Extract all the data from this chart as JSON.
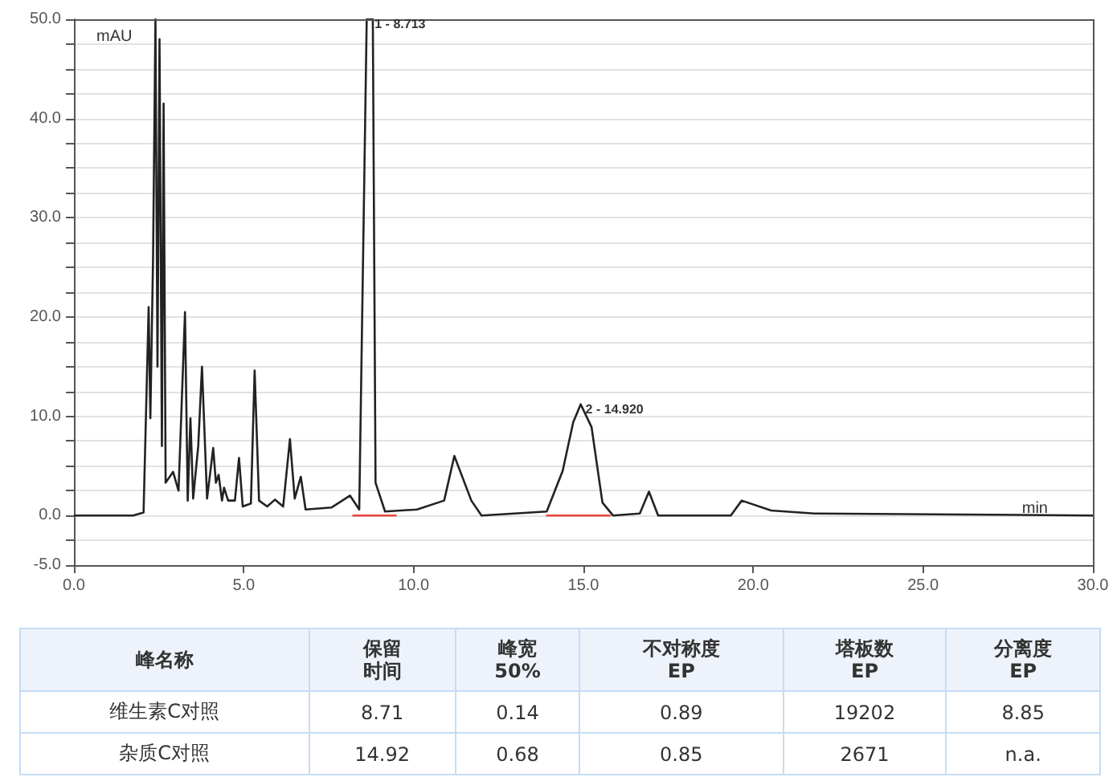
{
  "chart_data": [
    {
      "type": "line",
      "xlabel": "min",
      "ylabel": "mAU",
      "series": [
        {
          "color": "#222222",
          "x": [
            0,
            1.74,
            2.05,
            2.2,
            2.25,
            2.33,
            2.4,
            2.46,
            2.52,
            2.59,
            2.64,
            2.7,
            2.92,
            3.08,
            3.27,
            3.35,
            3.43,
            3.51,
            3.66,
            3.77,
            3.92,
            4.1,
            4.18,
            4.26,
            4.36,
            4.42,
            4.54,
            4.74,
            4.86,
            4.97,
            5.21,
            5.32,
            5.45,
            5.69,
            5.92,
            6.16,
            6.36,
            6.5,
            6.68,
            6.82,
            7.58,
            8.13,
            8.4,
            8.62,
            8.8,
            8.88,
            9.16,
            10.1,
            10.9,
            11.2,
            11.7,
            12.0,
            13.92,
            14.39,
            14.7,
            14.92,
            15.24,
            15.56,
            15.87,
            16.66,
            16.93,
            17.2,
            19.34,
            19.66,
            20.53,
            21.8,
            30
          ],
          "values": [
            0,
            0,
            0.3,
            21,
            9.8,
            26,
            50,
            15,
            48,
            7,
            41.5,
            3.3,
            4.4,
            2.5,
            20.5,
            1.5,
            9.8,
            1.7,
            7,
            15,
            1.7,
            6.8,
            3.3,
            4.1,
            1.5,
            2.8,
            1.5,
            1.5,
            5.8,
            0.9,
            1.2,
            14.6,
            1.5,
            0.9,
            1.6,
            0.9,
            7.7,
            1.7,
            3.9,
            0.6,
            0.8,
            2,
            0.6,
            50,
            50,
            3.3,
            0.4,
            0.6,
            1.5,
            6,
            1.5,
            0,
            0.4,
            4.5,
            9.4,
            11.2,
            8.9,
            1.3,
            0,
            0.2,
            2.4,
            0,
            0,
            1.5,
            0.5,
            0.2,
            0
          ]
        },
        {
          "color": "#e8463c",
          "x": [
            8.2,
            9.5
          ],
          "values": [
            0,
            0
          ]
        },
        {
          "color": "#e8463c",
          "x": [
            13.9,
            15.8
          ],
          "values": [
            0,
            0
          ]
        }
      ],
      "annotations": [
        {
          "text": "1 - 8.713",
          "x": 8.713,
          "y": 50
        },
        {
          "text": "2 - 14.920",
          "x": 14.92,
          "y": 11.2
        }
      ],
      "xlim": [
        0,
        30
      ],
      "xticks": [
        {
          "value": 0,
          "label": "0.0"
        },
        {
          "value": 5,
          "label": "5.0"
        },
        {
          "value": 10,
          "label": "10.0"
        },
        {
          "value": 15,
          "label": "15.0"
        },
        {
          "value": 20,
          "label": "20.0"
        },
        {
          "value": 25,
          "label": "25.0"
        },
        {
          "value": 30,
          "label": "30.0"
        }
      ],
      "ylim": [
        -5,
        50
      ],
      "yticks": [
        {
          "value": -5,
          "label": "-5.0"
        },
        {
          "value": -2.5,
          "label": null
        },
        {
          "value": 0,
          "label": "0.0"
        },
        {
          "value": 2.5,
          "label": null
        },
        {
          "value": 5,
          "label": null
        },
        {
          "value": 7.5,
          "label": null
        },
        {
          "value": 10,
          "label": "10.0"
        },
        {
          "value": 12.5,
          "label": null
        },
        {
          "value": 15,
          "label": null
        },
        {
          "value": 17.5,
          "label": null
        },
        {
          "value": 20,
          "label": "20.0"
        },
        {
          "value": 22.5,
          "label": null
        },
        {
          "value": 25,
          "label": null
        },
        {
          "value": 27.5,
          "label": null
        },
        {
          "value": 30,
          "label": "30.0"
        },
        {
          "value": 32.5,
          "label": null
        },
        {
          "value": 35,
          "label": null
        },
        {
          "value": 37.5,
          "label": null
        },
        {
          "value": 40,
          "label": "40.0"
        },
        {
          "value": 42.5,
          "label": null
        },
        {
          "value": 45,
          "label": null
        },
        {
          "value": 47.5,
          "label": null
        },
        {
          "value": 50,
          "label": "50.0"
        }
      ],
      "grid": "y",
      "marker": "none",
      "line_style": "solid"
    },
    {
      "type": "other",
      "ylabel": "峰名称",
      "categories": [
        "保留时间",
        "峰宽\n50%",
        "不对称度\nEP",
        "塔板数\nEP",
        "分离度\nEP"
      ],
      "y_categories": [
        "维生素C对照",
        "杂质C对照"
      ],
      "cell_labels": [
        [
          "8.71",
          "0.14",
          "0.89",
          "19202",
          "8.85"
        ],
        [
          "14.92",
          "0.68",
          "0.85",
          "2671",
          "n.a."
        ]
      ]
    }
  ]
}
